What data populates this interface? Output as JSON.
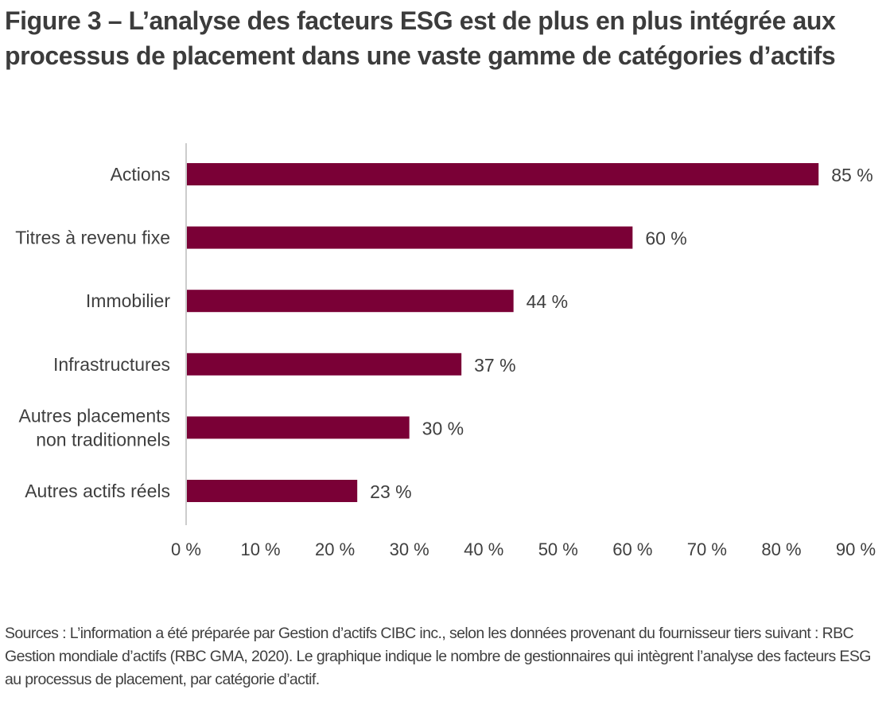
{
  "title": "Figure 3 – L’analyse des facteurs ESG est de plus en plus intégrée aux processus de placement dans une vaste gamme de catégories d’actifs",
  "source": "Sources : L’information a été préparée par Gestion d’actifs CIBC inc., selon les données provenant du fournisseur tiers suivant : RBC Gestion mondiale d’actifs (RBC GMA, 2020). Le graphique indique le nombre de gestionnaires qui intègrent l’analyse des facteurs ESG au processus de placement, par catégorie d’actif.",
  "colors": {
    "bar": "#7a0036",
    "axis": "#cccccc",
    "text": "#3f3f3f"
  },
  "chart_data": {
    "type": "bar",
    "orientation": "horizontal",
    "categories": [
      [
        "Actions"
      ],
      [
        "Titres à revenu fixe"
      ],
      [
        "Immobilier"
      ],
      [
        "Infrastructures"
      ],
      [
        "Autres placements",
        "non traditionnels"
      ],
      [
        "Autres actifs réels"
      ]
    ],
    "values": [
      85,
      60,
      44,
      37,
      30,
      23
    ],
    "value_labels": [
      "85 %",
      "60 %",
      "44 %",
      "37 %",
      "30 %",
      "23 %"
    ],
    "xlim": [
      0,
      90
    ],
    "xticks": [
      0,
      10,
      20,
      30,
      40,
      50,
      60,
      70,
      80,
      90
    ],
    "xtick_labels": [
      "0 %",
      "10 %",
      "20 %",
      "30 %",
      "40 %",
      "50 %",
      "60 %",
      "70 %",
      "80 %",
      "90 %"
    ],
    "grid": false,
    "legend": "none"
  }
}
